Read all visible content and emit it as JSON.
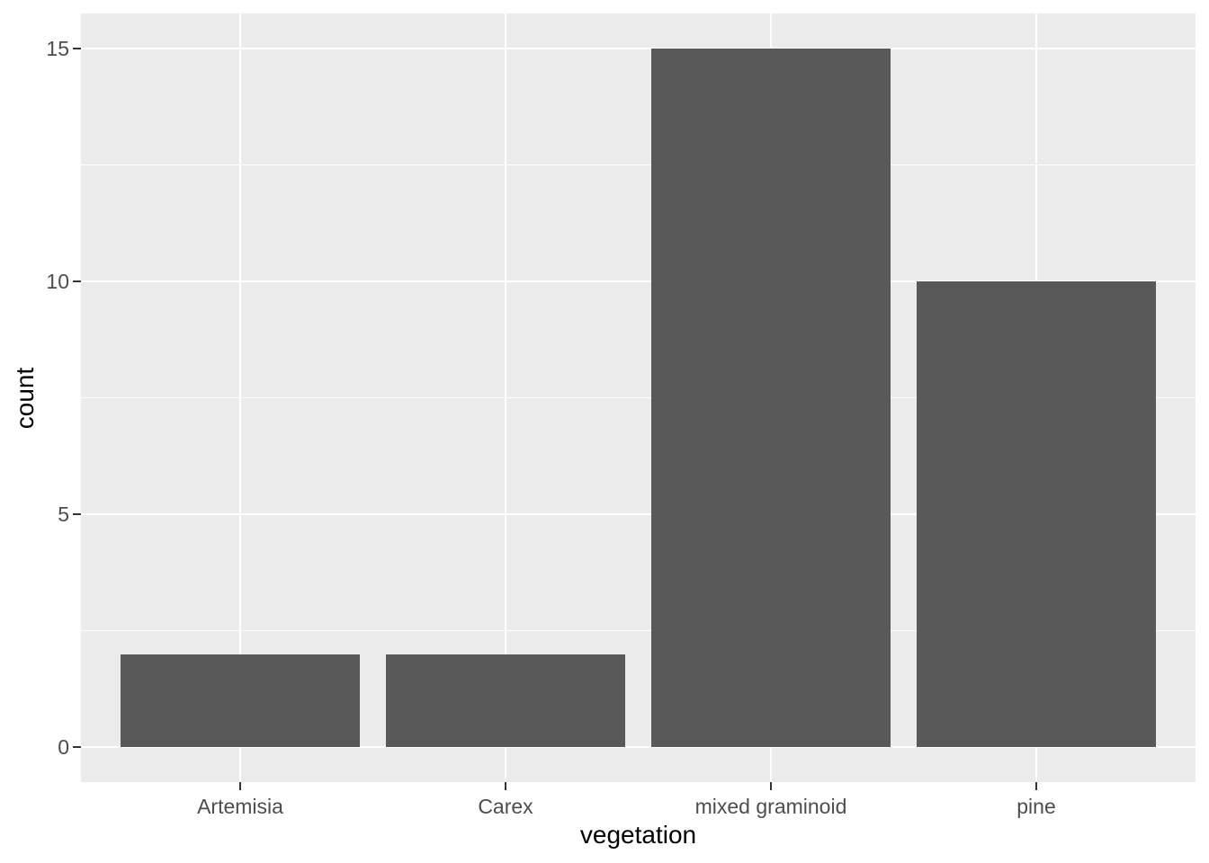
{
  "chart_data": {
    "type": "bar",
    "title": "",
    "xlabel": "vegetation",
    "ylabel": "count",
    "categories": [
      "Artemisia",
      "Carex",
      "mixed graminoid",
      "pine"
    ],
    "values": [
      2,
      2,
      15,
      10
    ],
    "y_ticks": [
      0,
      5,
      10,
      15
    ],
    "y_minor_ticks": [
      2.5,
      7.5,
      12.5
    ],
    "ylim": [
      0,
      15
    ],
    "expansion": {
      "x_categorical": 0.6,
      "y_fraction": 0.05
    },
    "bar_width_fraction": 0.9,
    "grid": "major-and-minor-horizontal-white, major-vertical-at-category-centers",
    "legend_position": "none",
    "style": {
      "figure_bg": "#FFFFFF",
      "panel_bg": "#EBEBEB",
      "grid_color": "#FFFFFF",
      "bar_fill": "#595959",
      "tick_label_color": "#4D4D4D",
      "tick_mark_color": "#333333",
      "axis_title_color": "#000000"
    }
  }
}
